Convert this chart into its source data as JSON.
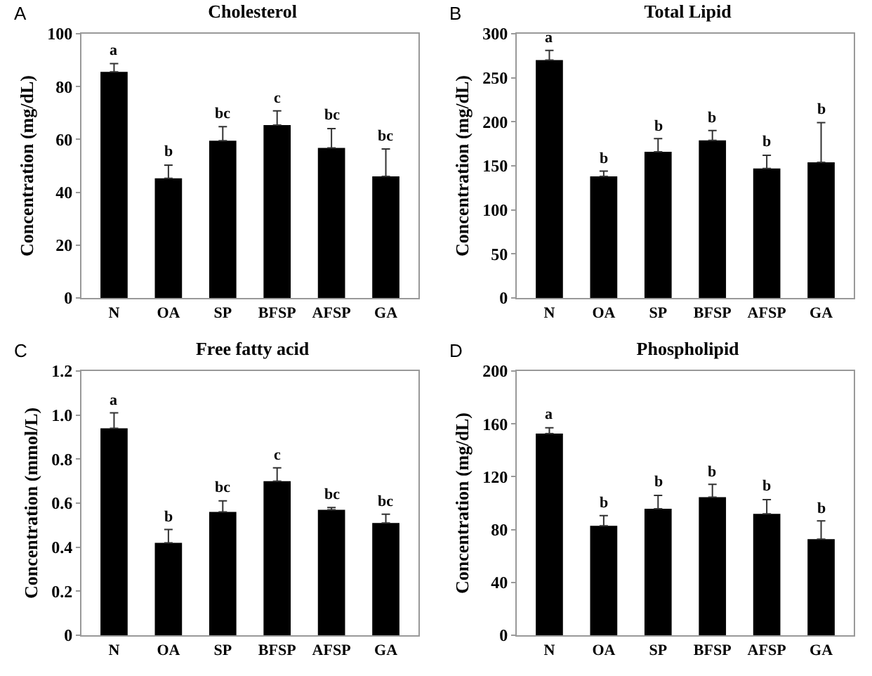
{
  "chart_data": [
    {
      "type": "bar",
      "title": "Cholesterol",
      "ylabel": "Concentration (mg/dL)",
      "categories": [
        "N",
        "OA",
        "SP",
        "BFSP",
        "AFSP",
        "GA"
      ],
      "color": "#000000",
      "values": [
        85.6,
        45.3,
        59.5,
        65.4,
        56.8,
        46
      ],
      "errors": [
        [
          85.6,
          88.7
        ],
        [
          45.3,
          50.3
        ],
        [
          59.5,
          64.8
        ],
        [
          65.4,
          70.8
        ],
        [
          56.8,
          64.1
        ],
        [
          46,
          56.4
        ]
      ],
      "ylim": [
        0,
        100
      ],
      "yticks": [
        0,
        20,
        40,
        60,
        80,
        100
      ],
      "annotations": [
        "A",
        {
          "text": "a",
          "x": "N",
          "y": 88.7
        },
        {
          "text": "b",
          "x": "OA",
          "y": 50.3
        },
        {
          "text": "bc",
          "x": "SP",
          "y": 64.8
        },
        {
          "text": "c",
          "x": "BFSP",
          "y": 70.8
        },
        {
          "text": "bc",
          "x": "AFSP",
          "y": 64.1
        },
        {
          "text": "bc",
          "x": "GA",
          "y": 56.4
        }
      ]
    },
    {
      "type": "bar",
      "title": "Total Lipid",
      "ylabel": "Concentration (mg/dL)",
      "categories": [
        "N",
        "OA",
        "SP",
        "BFSP",
        "AFSP",
        "GA"
      ],
      "color": "#000000",
      "values": [
        270,
        138,
        166,
        179,
        147,
        154
      ],
      "errors": [
        [
          270,
          281
        ],
        [
          138,
          144
        ],
        [
          166,
          181
        ],
        [
          179,
          190
        ],
        [
          147,
          162
        ],
        [
          154,
          199
        ]
      ],
      "ylim": [
        0,
        300
      ],
      "yticks": [
        0,
        50,
        100,
        150,
        200,
        250,
        300
      ],
      "annotations": [
        "B",
        {
          "text": "a",
          "x": "N",
          "y": 281
        },
        {
          "text": "b",
          "x": "OA",
          "y": 144
        },
        {
          "text": "b",
          "x": "SP",
          "y": 181
        },
        {
          "text": "b",
          "x": "BFSP",
          "y": 190
        },
        {
          "text": "b",
          "x": "AFSP",
          "y": 162
        },
        {
          "text": "b",
          "x": "GA",
          "y": 199
        }
      ]
    },
    {
      "type": "bar",
      "title": "Free fatty acid",
      "ylabel": "Concentration (mmol/L)",
      "categories": [
        "N",
        "OA",
        "SP",
        "BFSP",
        "AFSP",
        "GA"
      ],
      "color": "#000000",
      "values": [
        0.94,
        0.42,
        0.56,
        0.7,
        0.57,
        0.51
      ],
      "errors": [
        [
          0.94,
          1.01
        ],
        [
          0.42,
          0.48
        ],
        [
          0.56,
          0.61
        ],
        [
          0.7,
          0.76
        ],
        [
          0.57,
          0.58
        ],
        [
          0.51,
          0.55
        ]
      ],
      "ylim": [
        0,
        1.2
      ],
      "yticks": [
        0,
        0.2,
        0.4,
        0.6,
        0.8,
        {
          "value": 1.0,
          "label": "1.0"
        },
        1.2
      ],
      "annotations": [
        "C",
        {
          "text": "a",
          "x": "N",
          "y": 1.01
        },
        {
          "text": "b",
          "x": "OA",
          "y": 0.48
        },
        {
          "text": "bc",
          "x": "SP",
          "y": 0.61
        },
        {
          "text": "c",
          "x": "BFSP",
          "y": 0.76
        },
        {
          "text": "bc",
          "x": "AFSP",
          "y": 0.58
        },
        {
          "text": "bc",
          "x": "GA",
          "y": 0.55
        }
      ]
    },
    {
      "type": "bar",
      "title": "Phospholipid",
      "ylabel": "Concentration (mg/dL)",
      "categories": [
        "N",
        "OA",
        "SP",
        "BFSP",
        "AFSP",
        "GA"
      ],
      "color": "#000000",
      "values": [
        152.7,
        82.8,
        95.7,
        104.5,
        91.9,
        72.7
      ],
      "errors": [
        [
          152.7,
          157
        ],
        [
          82.8,
          90.5
        ],
        [
          95.7,
          105.9
        ],
        [
          104.5,
          114.2
        ],
        [
          91.9,
          102.7
        ],
        [
          72.7,
          86.6
        ]
      ],
      "ylim": [
        0,
        200
      ],
      "yticks": [
        0,
        40,
        80,
        120,
        160,
        200
      ],
      "annotations": [
        "D",
        {
          "text": "a",
          "x": "N",
          "y": 157
        },
        {
          "text": "b",
          "x": "OA",
          "y": 90.5
        },
        {
          "text": "b",
          "x": "SP",
          "y": 105.9
        },
        {
          "text": "b",
          "x": "BFSP",
          "y": 114.2
        },
        {
          "text": "b",
          "x": "AFSP",
          "y": 102.7
        },
        {
          "text": "b",
          "x": "GA",
          "y": 86.6
        }
      ]
    }
  ]
}
